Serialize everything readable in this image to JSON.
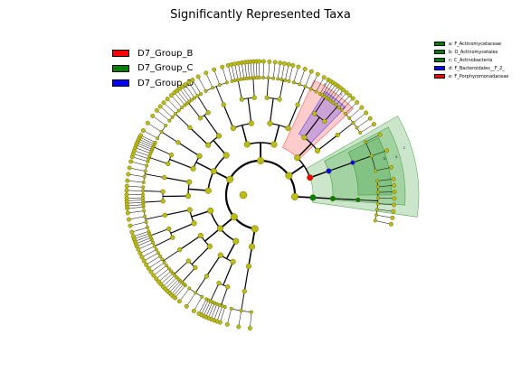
{
  "title": "Significantly Represented Taxa",
  "groups": [
    {
      "label": "D7_Group_B",
      "color": "#ff0000"
    },
    {
      "label": "D7_Group_C",
      "color": "#008000"
    },
    {
      "label": "D7_Group_D",
      "color": "#0000ff"
    }
  ],
  "taxa": [
    {
      "label": "a: F_Actinomycetaceae",
      "color": "#008000"
    },
    {
      "label": "b: O_Actinomycetales",
      "color": "#008000"
    },
    {
      "label": "c: C_Actinobacteria",
      "color": "#008000"
    },
    {
      "label": "d: F_Bacteroidales__F_2_",
      "color": "#0000ff"
    },
    {
      "label": "e: F_Porphyromonadaceae",
      "color": "#ff0000"
    }
  ],
  "sector_letters": [
    "a",
    "b",
    "c",
    "d",
    "e"
  ],
  "colors": {
    "node": "#bcbc13",
    "node_stroke": "#6b6b00",
    "edge": "#000000"
  }
}
